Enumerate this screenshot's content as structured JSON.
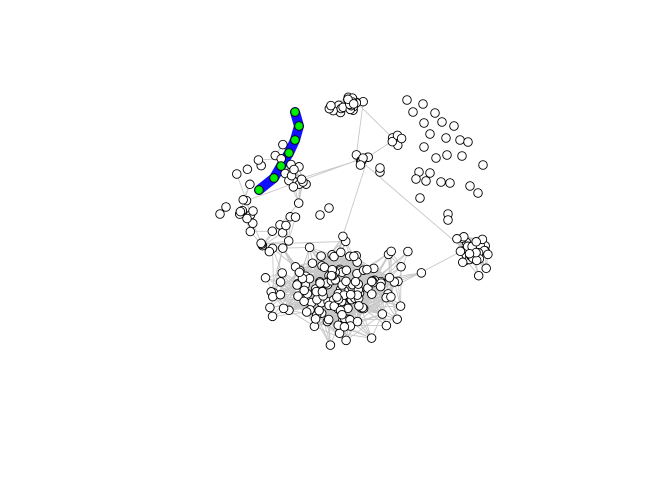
{
  "graph": {
    "type": "network",
    "background_color": "#ffffff",
    "edge_color": "#c8c8c8",
    "node_fill": "#ffffff",
    "node_stroke": "#000000",
    "path_color": "#1010ff",
    "path_node_fill": "#00ee00",
    "highlighted_path_node_count": 7
  }
}
